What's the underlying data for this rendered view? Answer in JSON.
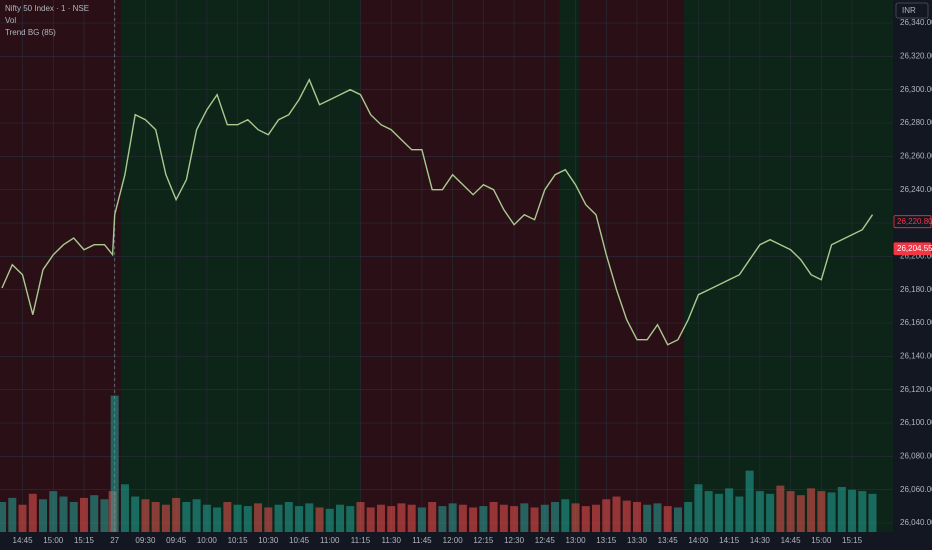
{
  "chart_data": {
    "type": "line",
    "title": "Nifty 50 Index · 1 · NSE",
    "indicators": [
      "Vol",
      "Trend BG (85)"
    ],
    "currency": "INR",
    "color": "#a9c98f",
    "x": [
      0,
      5,
      10,
      15,
      20,
      25,
      30,
      35,
      40,
      45,
      50,
      54,
      55,
      60,
      65,
      70,
      75,
      80,
      85,
      90,
      95,
      100,
      105,
      110,
      115,
      120,
      125,
      130,
      135,
      140,
      145,
      150,
      155,
      160,
      165,
      170,
      175,
      180,
      185,
      190,
      195,
      200,
      205,
      210,
      215,
      220,
      225,
      230,
      235,
      240,
      245,
      250,
      255,
      260,
      265,
      270,
      275,
      280,
      285,
      290,
      295,
      300,
      305,
      310,
      315,
      320,
      325,
      330,
      335,
      340,
      345,
      350,
      355,
      360,
      365,
      370,
      375,
      380,
      385,
      390,
      395,
      400,
      405,
      410,
      415,
      420,
      425
    ],
    "values": [
      26181,
      26195,
      26189,
      26165,
      26192,
      26201,
      26207,
      26211,
      26204,
      26207,
      26207,
      26201,
      26225,
      26249,
      26285,
      26282,
      26276,
      26249,
      26234,
      26246,
      26276,
      26288,
      26297,
      26279,
      26279,
      26282,
      26276,
      26273,
      26282,
      26285,
      26294,
      26306,
      26291,
      26294,
      26297,
      26300,
      26297,
      26285,
      26279,
      26276,
      26270,
      26264,
      26264,
      26240,
      26240,
      26249,
      26243,
      26237,
      26243,
      26240,
      26228,
      26219,
      26225,
      26222,
      26240,
      26249,
      26252,
      26243,
      26231,
      26225,
      26201,
      26180,
      26162,
      26150,
      26150,
      26159,
      26147,
      26150,
      26162,
      26177,
      26180,
      26183,
      26186,
      26189,
      26198,
      26207,
      26210,
      26207,
      26204,
      26198,
      26189,
      26186,
      26207,
      26210,
      26213,
      26216,
      26225
    ],
    "volume": [
      22,
      25,
      20,
      28,
      24,
      30,
      26,
      22,
      25,
      27,
      24,
      30,
      100,
      35,
      26,
      24,
      22,
      20,
      25,
      22,
      24,
      20,
      18,
      22,
      20,
      19,
      21,
      18,
      20,
      22,
      19,
      21,
      18,
      17,
      20,
      19,
      22,
      18,
      20,
      19,
      21,
      20,
      18,
      22,
      19,
      21,
      20,
      18,
      19,
      22,
      20,
      19,
      21,
      18,
      20,
      22,
      24,
      21,
      19,
      20,
      24,
      26,
      23,
      22,
      20,
      21,
      19,
      18,
      22,
      35,
      30,
      28,
      32,
      26,
      45,
      30,
      28,
      34,
      30,
      27,
      32,
      30,
      29,
      33,
      31,
      30,
      28
    ],
    "volume_ylim": [
      0,
      110
    ],
    "volume_colors": [
      "#26a69a",
      "#ef5350"
    ],
    "zones": [
      {
        "from": -1,
        "to": 58,
        "color": "#2a1016"
      },
      {
        "from": 58,
        "to": 175,
        "color": "#0d2418"
      },
      {
        "from": 175,
        "to": 272,
        "color": "#2a1016"
      },
      {
        "from": 272,
        "to": 282,
        "color": "#0d2418"
      },
      {
        "from": 282,
        "to": 333,
        "color": "#2a1016"
      },
      {
        "from": 333,
        "to": 435,
        "color": "#0d2418"
      }
    ],
    "xlim": [
      -1,
      435
    ],
    "xticks": [
      {
        "value": 10,
        "label": "14:45"
      },
      {
        "value": 25,
        "label": "15:00"
      },
      {
        "value": 40,
        "label": "15:15"
      },
      {
        "value": 55,
        "label": "27"
      },
      {
        "value": 70,
        "label": "09:30"
      },
      {
        "value": 85,
        "label": "09:45"
      },
      {
        "value": 100,
        "label": "10:00"
      },
      {
        "value": 115,
        "label": "10:15"
      },
      {
        "value": 130,
        "label": "10:30"
      },
      {
        "value": 145,
        "label": "10:45"
      },
      {
        "value": 160,
        "label": "11:00"
      },
      {
        "value": 175,
        "label": "11:15"
      },
      {
        "value": 190,
        "label": "11:30"
      },
      {
        "value": 205,
        "label": "11:45"
      },
      {
        "value": 220,
        "label": "12:00"
      },
      {
        "value": 235,
        "label": "12:15"
      },
      {
        "value": 250,
        "label": "12:30"
      },
      {
        "value": 265,
        "label": "12:45"
      },
      {
        "value": 280,
        "label": "13:00"
      },
      {
        "value": 295,
        "label": "13:15"
      },
      {
        "value": 310,
        "label": "13:30"
      },
      {
        "value": 325,
        "label": "13:45"
      },
      {
        "value": 340,
        "label": "14:00"
      },
      {
        "value": 355,
        "label": "14:15"
      },
      {
        "value": 370,
        "label": "14:30"
      },
      {
        "value": 385,
        "label": "14:45"
      },
      {
        "value": 400,
        "label": "15:00"
      },
      {
        "value": 415,
        "label": "15:15"
      }
    ],
    "ylim": [
      26034.6,
      26353.8
    ],
    "yticks": [
      {
        "value": 26040,
        "label": "26,040.00"
      },
      {
        "value": 26060,
        "label": "26,060.00"
      },
      {
        "value": 26080,
        "label": "26,080.00"
      },
      {
        "value": 26100,
        "label": "26,100.00"
      },
      {
        "value": 26120,
        "label": "26,120.00"
      },
      {
        "value": 26140,
        "label": "26,140.00"
      },
      {
        "value": 26160,
        "label": "26,160.00"
      },
      {
        "value": 26180,
        "label": "26,180.00"
      },
      {
        "value": 26200,
        "label": "26,200.00"
      },
      {
        "value": 26220,
        "label": "26,220.00"
      },
      {
        "value": 26240,
        "label": "26,240.00"
      },
      {
        "value": 26260,
        "label": "26,260.00"
      },
      {
        "value": 26280,
        "label": "26,280.00"
      },
      {
        "value": 26300,
        "label": "26,300.00"
      },
      {
        "value": 26320,
        "label": "26,320.00"
      },
      {
        "value": 26340,
        "label": "26,340.00"
      }
    ],
    "price_labels": [
      {
        "value": 26220.8,
        "label": "26,220.80",
        "color": "#f23645",
        "filled": false
      },
      {
        "value": 26204.55,
        "label": "26,204.55",
        "color": "#f23645",
        "filled": true
      }
    ],
    "grid": true
  }
}
